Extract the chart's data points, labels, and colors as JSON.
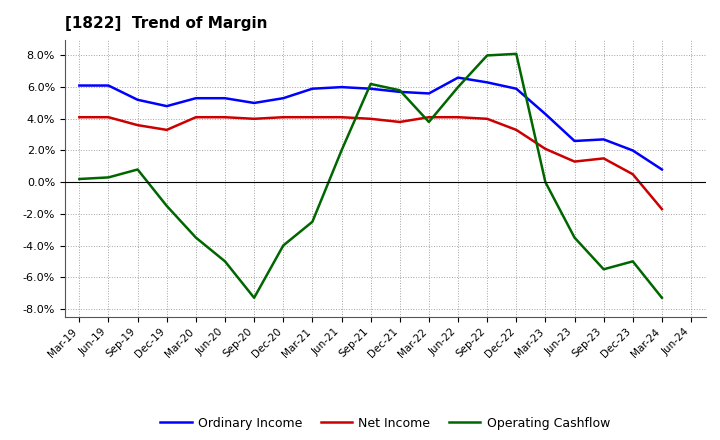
{
  "title": "[1822]  Trend of Margin",
  "title_fontsize": 11,
  "title_fontweight": "bold",
  "x_labels": [
    "Mar-19",
    "Jun-19",
    "Sep-19",
    "Dec-19",
    "Mar-20",
    "Jun-20",
    "Sep-20",
    "Dec-20",
    "Mar-21",
    "Jun-21",
    "Sep-21",
    "Dec-21",
    "Mar-22",
    "Jun-22",
    "Sep-22",
    "Dec-22",
    "Mar-23",
    "Jun-23",
    "Sep-23",
    "Dec-23",
    "Mar-24",
    "Jun-24"
  ],
  "ordinary_income": [
    6.1,
    6.1,
    5.2,
    4.8,
    5.3,
    5.3,
    5.0,
    5.3,
    5.9,
    6.0,
    5.9,
    5.7,
    5.6,
    6.6,
    6.3,
    5.9,
    4.3,
    2.6,
    2.7,
    2.0,
    0.8,
    null
  ],
  "net_income": [
    4.1,
    4.1,
    3.6,
    3.3,
    4.1,
    4.1,
    4.0,
    4.1,
    4.1,
    4.1,
    4.0,
    3.8,
    4.1,
    4.1,
    4.0,
    3.3,
    2.1,
    1.3,
    1.5,
    0.5,
    -1.7,
    null
  ],
  "operating_cf": [
    0.2,
    0.3,
    0.8,
    -1.5,
    -3.5,
    -5.0,
    -7.3,
    -4.0,
    -2.5,
    2.0,
    6.2,
    5.8,
    3.8,
    6.0,
    8.0,
    8.1,
    0.0,
    -3.5,
    -5.5,
    -5.0,
    -7.3,
    null
  ],
  "ylim": [
    -8.5,
    9.0
  ],
  "yticks": [
    -8.0,
    -6.0,
    -4.0,
    -2.0,
    0.0,
    2.0,
    4.0,
    6.0,
    8.0
  ],
  "line_color_blue": "#0000FF",
  "line_color_red": "#CC0000",
  "line_color_green": "#006600",
  "background_color": "#FFFFFF",
  "grid_color": "#999999",
  "legend_labels": [
    "Ordinary Income",
    "Net Income",
    "Operating Cashflow"
  ]
}
